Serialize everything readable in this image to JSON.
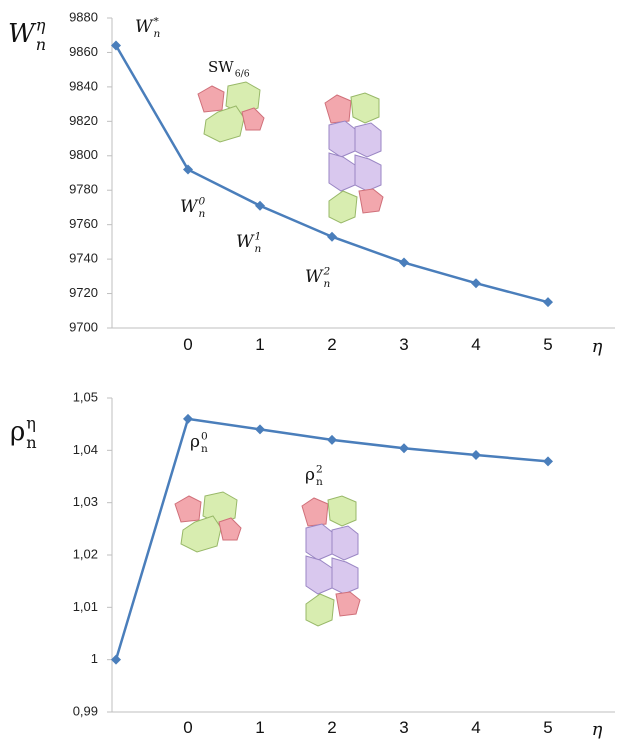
{
  "chart_data": [
    {
      "type": "line",
      "y_label": {
        "text": "W",
        "sub": "n",
        "sup": "η"
      },
      "x_label": "η",
      "categories": [
        null,
        "0",
        "1",
        "2",
        "3",
        "4",
        "5"
      ],
      "series": [
        {
          "color": "#4a7ebb",
          "values": [
            9864,
            9792,
            9771,
            9753,
            9738,
            9726,
            9715
          ]
        }
      ],
      "ylim": [
        9700,
        9880
      ],
      "yticks": [
        9700,
        9720,
        9740,
        9760,
        9780,
        9800,
        9820,
        9840,
        9860,
        9880
      ],
      "grid": false,
      "annotations": [
        {
          "text": "W",
          "sub": "n",
          "sup": "*"
        },
        {
          "text": "SW",
          "sub": "6/6"
        },
        {
          "text": "W",
          "sub": "n",
          "sup": "0"
        },
        {
          "text": "W",
          "sub": "n",
          "sup": "1"
        },
        {
          "text": "W",
          "sub": "n",
          "sup": "2"
        }
      ]
    },
    {
      "type": "line",
      "y_label": {
        "text": "ρ",
        "sub": "n",
        "sup": "η"
      },
      "x_label": "η",
      "categories": [
        null,
        "0",
        "1",
        "2",
        "3",
        "4",
        "5"
      ],
      "series": [
        {
          "color": "#4a7ebb",
          "values": [
            1.0,
            1.046,
            1.044,
            1.042,
            1.0404,
            1.0391,
            1.0379
          ]
        }
      ],
      "ylim": [
        0.99,
        1.05
      ],
      "yticks": [
        {
          "value": 0.99,
          "label": "0,99"
        },
        1,
        {
          "value": 1.01,
          "label": "1,01"
        },
        {
          "value": 1.02,
          "label": "1,02"
        },
        {
          "value": 1.03,
          "label": "1,03"
        },
        {
          "value": 1.04,
          "label": "1,04"
        },
        {
          "value": 1.05,
          "label": "1,05"
        }
      ],
      "grid": false,
      "annotations": [
        {
          "text": "ρ",
          "sub": "n",
          "sup": "0"
        },
        {
          "text": "ρ",
          "sub": "n",
          "sup": "2"
        }
      ]
    }
  ]
}
